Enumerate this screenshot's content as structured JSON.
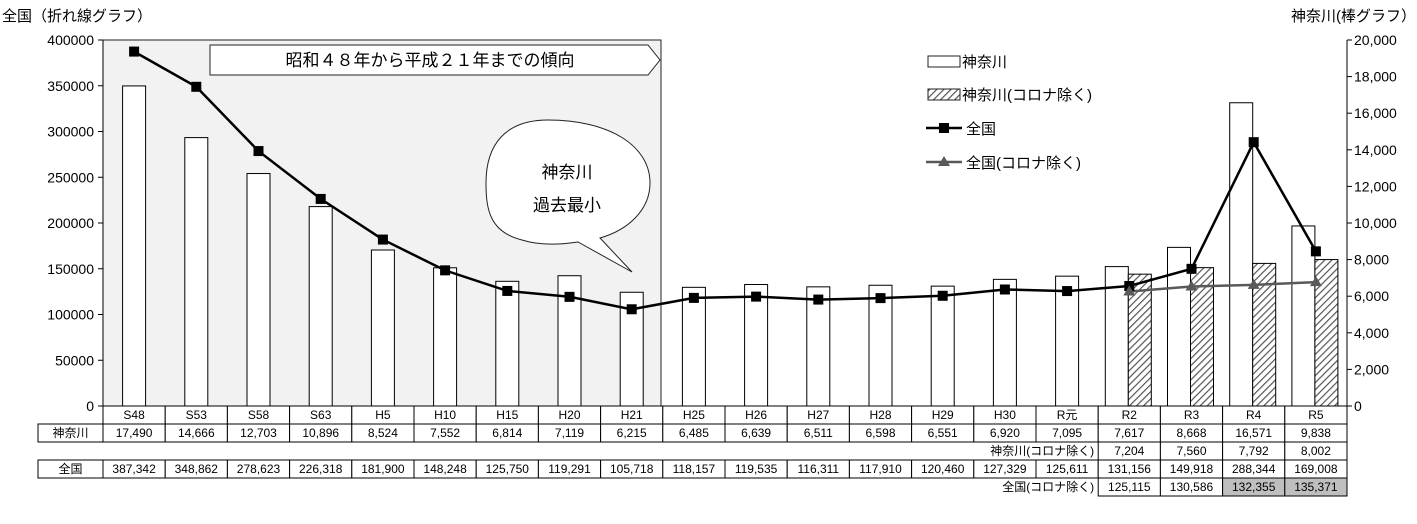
{
  "chart_data": {
    "type": "bar",
    "left_axis_title": "全国（折れ線グラフ）",
    "right_axis_title": "神奈川(棒グラフ）",
    "left_ylim": [
      0,
      400000
    ],
    "left_ticks": [
      "0",
      "50000",
      "100000",
      "150000",
      "200000",
      "250000",
      "300000",
      "350000",
      "400000"
    ],
    "right_ylim": [
      0,
      20000
    ],
    "right_ticks": [
      "0",
      "2,000",
      "4,000",
      "6,000",
      "8,000",
      "10,000",
      "12,000",
      "14,000",
      "16,000",
      "18,000",
      "20,000"
    ],
    "categories": [
      "S48",
      "S53",
      "S58",
      "S63",
      "H5",
      "H10",
      "H15",
      "H20",
      "H21",
      "H25",
      "H26",
      "H27",
      "H28",
      "H29",
      "H30",
      "R元",
      "R2",
      "R3",
      "R4",
      "R5"
    ],
    "series": [
      {
        "name": "神奈川",
        "axis": "right",
        "values": [
          17490,
          14666,
          12703,
          10896,
          8524,
          7552,
          6814,
          7119,
          6215,
          6485,
          6639,
          6511,
          6598,
          6551,
          6920,
          7095,
          7617,
          8668,
          16571,
          9838
        ]
      },
      {
        "name": "神奈川(コロナ除く)",
        "axis": "right",
        "values": [
          null,
          null,
          null,
          null,
          null,
          null,
          null,
          null,
          null,
          null,
          null,
          null,
          null,
          null,
          null,
          null,
          7204,
          7560,
          7792,
          8002
        ]
      },
      {
        "name": "全国",
        "axis": "left",
        "values": [
          387342,
          348862,
          278623,
          226318,
          181900,
          148248,
          125750,
          119291,
          105718,
          118157,
          119535,
          116311,
          117910,
          120460,
          127329,
          125611,
          131156,
          149918,
          288344,
          169008
        ]
      },
      {
        "name": "全国(コロナ除く)",
        "axis": "left",
        "values": [
          null,
          null,
          null,
          null,
          null,
          null,
          null,
          null,
          null,
          null,
          null,
          null,
          null,
          null,
          null,
          null,
          125115,
          130586,
          132355,
          135371
        ]
      }
    ],
    "shaded_period_label": "昭和４８年から平成２１年までの傾向",
    "callout": [
      "神奈川",
      "過去最小"
    ],
    "legend_position": "top-right"
  },
  "table": {
    "kanagawa_label": "神奈川",
    "kanagawa_values": [
      "17,490",
      "14,666",
      "12,703",
      "10,896",
      "8,524",
      "7,552",
      "6,814",
      "7,119",
      "6,215",
      "6,485",
      "6,639",
      "6,511",
      "6,598",
      "6,551",
      "6,920",
      "7,095",
      "7,617",
      "8,668",
      "16,571",
      "9,838"
    ],
    "kanagawa_excl_label": "神奈川(コロナ除く)",
    "kanagawa_excl_values": [
      "7,204",
      "7,560",
      "7,792",
      "8,002"
    ],
    "national_label": "全国",
    "national_values": [
      "387,342",
      "348,862",
      "278,623",
      "226,318",
      "181,900",
      "148,248",
      "125,750",
      "119,291",
      "105,718",
      "118,157",
      "119,535",
      "116,311",
      "117,910",
      "120,460",
      "127,329",
      "125,611",
      "131,156",
      "149,918",
      "288,344",
      "169,008"
    ],
    "national_excl_label": "全国(コロナ除く)",
    "national_excl_values": [
      "125,115",
      "130,586",
      "132,355",
      "135,371"
    ],
    "highlight_color": "#bfbfbf"
  }
}
